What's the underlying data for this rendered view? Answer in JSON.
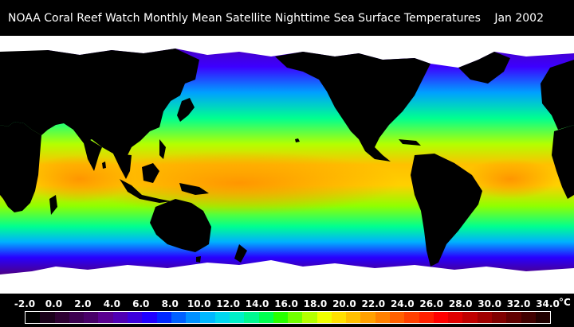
{
  "title": {
    "text": "NOAA Coral Reef Watch Monthly Mean Satellite Nighttime Sea Surface Temperatures",
    "date": "Jan 2002"
  },
  "legend": {
    "unit": "°C",
    "ticks": [
      "-2.0",
      "0.0",
      "2.0",
      "4.0",
      "6.0",
      "8.0",
      "10.0",
      "12.0",
      "14.0",
      "16.0",
      "18.0",
      "20.0",
      "22.0",
      "24.0",
      "26.0",
      "28.0",
      "30.0",
      "32.0",
      "34.0"
    ],
    "colors": [
      "#000000",
      "#1a001a",
      "#2e0032",
      "#3c0050",
      "#480068",
      "#5a0090",
      "#5000b4",
      "#3c00dc",
      "#2000ff",
      "#0028ff",
      "#0060ff",
      "#0090ff",
      "#00b8ff",
      "#00d8f0",
      "#00f0c8",
      "#00f890",
      "#00ff50",
      "#28ff00",
      "#70ff00",
      "#b4ff00",
      "#f0ff00",
      "#ffe000",
      "#ffc000",
      "#ffa000",
      "#ff8000",
      "#ff6000",
      "#ff4000",
      "#ff2000",
      "#ff0000",
      "#e00000",
      "#c00000",
      "#a00000",
      "#800000",
      "#600000",
      "#400000",
      "#200000"
    ]
  },
  "map": {
    "colors": {
      "land": "#000000",
      "ice": "#ffffff",
      "polar": "#50007a",
      "cold": "#2d00ff",
      "cool": "#00b0ff",
      "mild": "#00ff80",
      "warm": "#b4ff00",
      "hot": "#ffb000",
      "hottest": "#ff8c00"
    }
  }
}
